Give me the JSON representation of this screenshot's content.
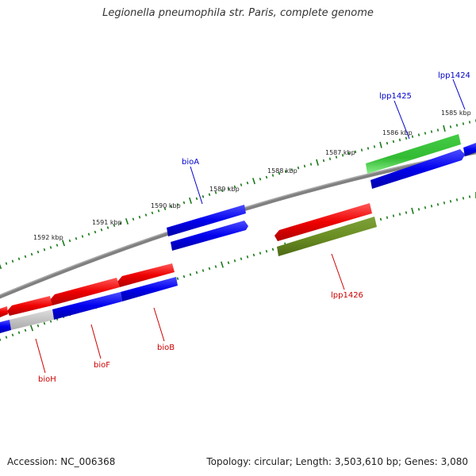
{
  "title": "Legionella pneumophila str. Paris, complete genome",
  "accession_text": "Accession: NC_006368",
  "summary_text": "Topology: circular; Length: 3,503,610 bp; Genes: 3,080",
  "ticks": [
    "1585 kbp",
    "1586 kbp",
    "1587 kbp",
    "1588 kbp",
    "1589 kbp",
    "1590 kbp",
    "1591 kbp",
    "1592 kbp"
  ],
  "gene_labels": [
    {
      "text": "lpp1424",
      "color": "#0000cc"
    },
    {
      "text": "lpp1425",
      "color": "#0000cc"
    },
    {
      "text": "bioA",
      "color": "#0000cc"
    },
    {
      "text": "lpp1426",
      "color": "#cc0000"
    },
    {
      "text": "bioB",
      "color": "#cc0000"
    },
    {
      "text": "bioF",
      "color": "#cc0000"
    },
    {
      "text": "bioH",
      "color": "#cc0000"
    }
  ],
  "colors": {
    "forward_cds": "#0000ee",
    "reverse_cds": "#ee0000",
    "green_feature": "#33bb33",
    "olive_feature": "#6b8e23",
    "grey_feature": "#c0c0c0",
    "backbone": "#808080",
    "tick_marks": "#1a7a1a"
  }
}
